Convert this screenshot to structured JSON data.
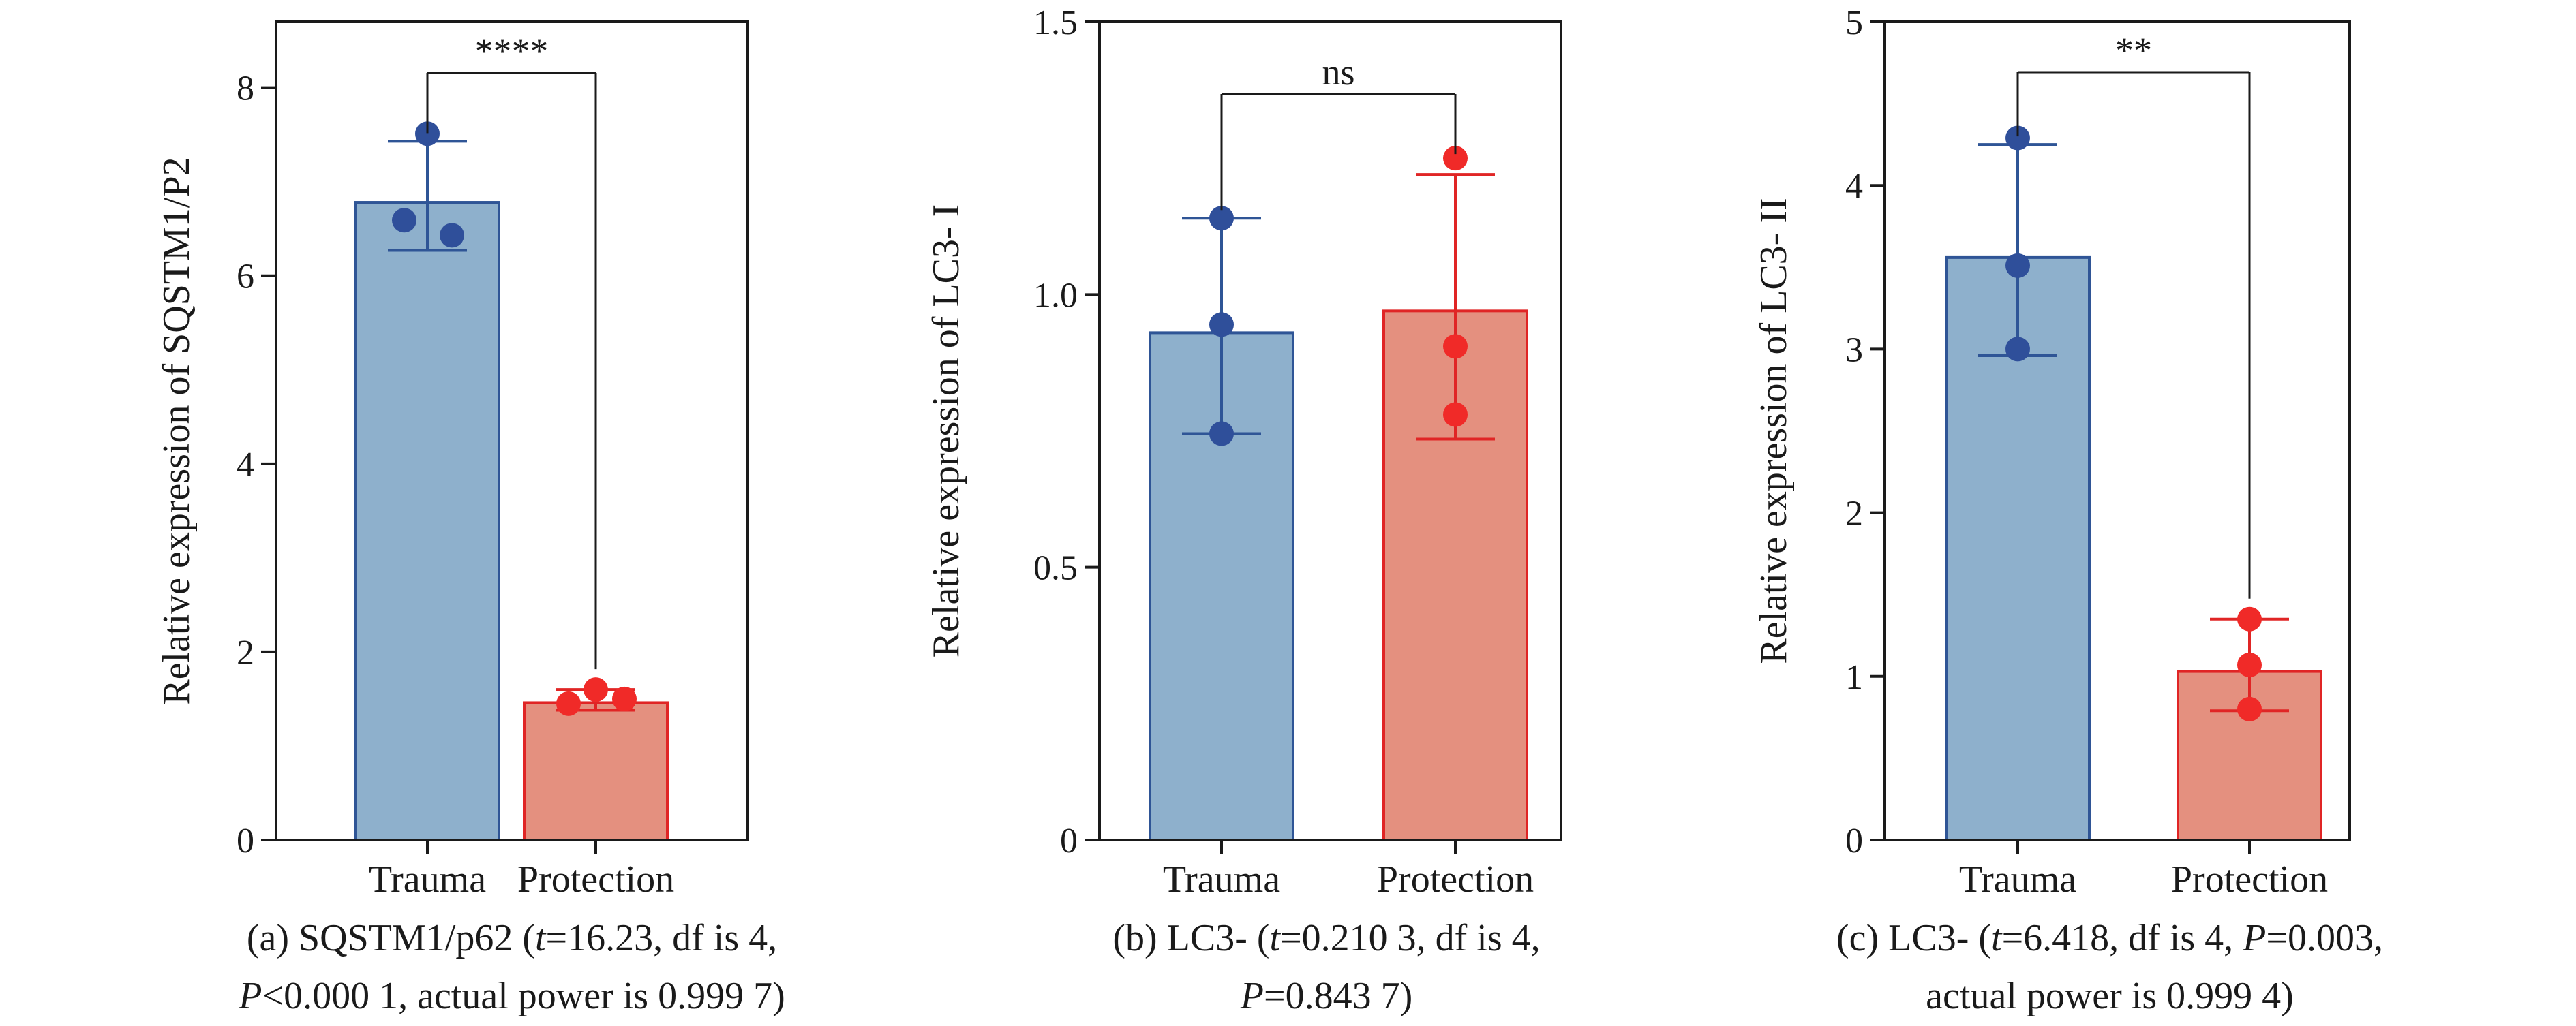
{
  "chart_data": [
    {
      "type": "bar",
      "categories": [
        "Trauma",
        "Protection"
      ],
      "ylabel": "Relative expression of SQSTM1/P2",
      "ylim": [
        0,
        8.7
      ],
      "yticks": [
        0,
        2,
        4,
        6,
        8
      ],
      "tick_labels": [
        "0",
        "2",
        "4",
        "6",
        "8"
      ],
      "series": [
        {
          "values": [
            6.78,
            1.46
          ]
        }
      ],
      "error_bars": [
        [
          6.27,
          7.43
        ],
        [
          1.38,
          1.6
        ]
      ],
      "points": [
        [
          7.51,
          6.59,
          6.43
        ],
        [
          1.45,
          1.6,
          1.5
        ]
      ],
      "significance": "****",
      "caption": {
        "main": "(a) SQSTM1/p62 (",
        "t": "t",
        "after_t": "=16.23, df is 4,",
        "p": "P",
        "line2_rest": "<0.000 1, actual power is 0.999 7)"
      }
    },
    {
      "type": "bar",
      "categories": [
        "Trauma",
        "Protection"
      ],
      "ylabel": "Relative expression of LC3- I",
      "ylim": [
        0,
        1.5
      ],
      "yticks": [
        0,
        0.5,
        1.0,
        1.5
      ],
      "tick_labels": [
        "0",
        "0.5",
        "1.0",
        "1.5"
      ],
      "series": [
        {
          "values": [
            0.93,
            0.97
          ]
        }
      ],
      "error_bars": [
        [
          0.745,
          1.14
        ],
        [
          0.735,
          1.22
        ]
      ],
      "points": [
        [
          1.14,
          0.945,
          0.745
        ],
        [
          1.25,
          0.905,
          0.78
        ]
      ],
      "significance": "ns",
      "caption": {
        "main": "(b) LC3- (",
        "t": "t",
        "after_t": "=0.210 3, df is 4,",
        "p": "P",
        "line2_rest": "=0.843 7)"
      }
    },
    {
      "type": "bar",
      "categories": [
        "Trauma",
        "Protection"
      ],
      "ylabel": "Relative expression of LC3- II",
      "ylim": [
        0,
        5
      ],
      "yticks": [
        0,
        1,
        2,
        3,
        4,
        5
      ],
      "tick_labels": [
        "0",
        "1",
        "2",
        "3",
        "4",
        "5"
      ],
      "series": [
        {
          "values": [
            3.56,
            1.03
          ]
        }
      ],
      "error_bars": [
        [
          2.96,
          4.25
        ],
        [
          0.79,
          1.35
        ]
      ],
      "points": [
        [
          4.29,
          3.51,
          3.0
        ],
        [
          1.35,
          1.07,
          0.8
        ]
      ],
      "significance": "**",
      "caption": {
        "main": "(c) LC3- (",
        "t": "t",
        "after_t": "=6.418, df is 4, ",
        "p": "P",
        "after_p": "=0.003,",
        "line2_rest": "actual power is 0.999 4)"
      }
    }
  ],
  "colors": {
    "trauma_fill": "#8eb0cc",
    "trauma_edge": "#2f5596",
    "trauma_point": "#2f4f9a",
    "protection_fill": "#e4907f",
    "protection_edge": "#e02525",
    "protection_point": "#f02a28",
    "axis": "#1a1a1a"
  }
}
